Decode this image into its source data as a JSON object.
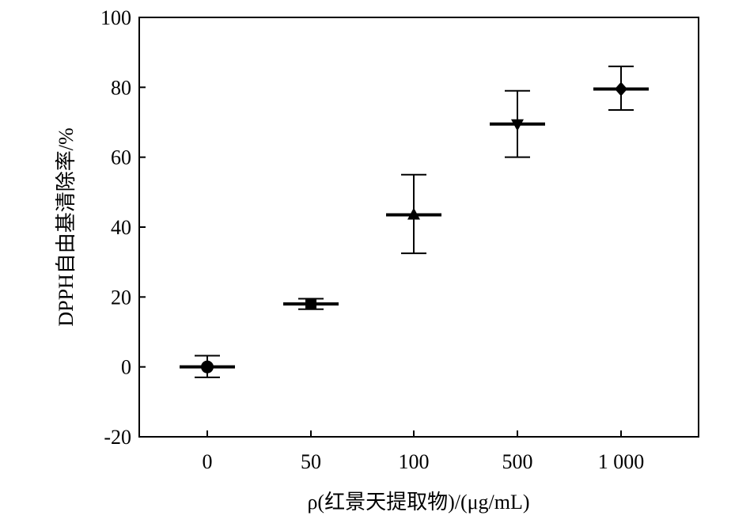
{
  "chart_data": {
    "type": "scatter",
    "title": "",
    "xlabel": "ρ(红景天提取物)/(μg/mL)",
    "ylabel": "DPPH自由基清除率/%",
    "categories": [
      "0",
      "50",
      "100",
      "500",
      "1 000"
    ],
    "values": [
      0,
      18,
      43.5,
      69.5,
      79.5
    ],
    "error_low": [
      -3,
      16.5,
      32.5,
      60,
      73.5
    ],
    "error_high": [
      3.2,
      19.5,
      55,
      79,
      86
    ],
    "markers": [
      "circle",
      "square",
      "triangle-up",
      "triangle-down",
      "diamond"
    ],
    "ylim": [
      -20,
      100
    ],
    "yticks": [
      "-20",
      "0",
      "20",
      "40",
      "60",
      "80",
      "100"
    ],
    "grid": false,
    "legend": "none",
    "colors": {
      "marks": "#000000",
      "background": "#ffffff"
    }
  }
}
